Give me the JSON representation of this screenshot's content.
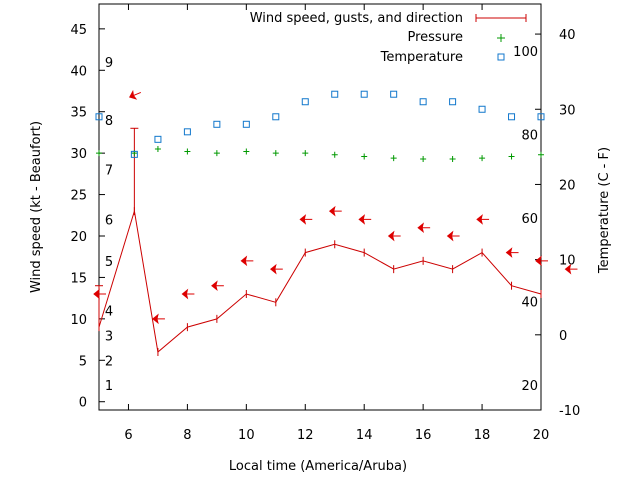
{
  "chart_data": {
    "type": "line",
    "xlabel": "Local time (America/Aruba)",
    "ylabel": "Wind speed (kt - Beaufort)",
    "y2label": "Temperature (C - F)",
    "xlim": [
      5,
      20
    ],
    "ylim": [
      -1,
      48
    ],
    "y2lim": [
      -10,
      44
    ],
    "grid": false,
    "legend_position": "top-right",
    "x_ticks": [
      6,
      8,
      10,
      12,
      14,
      16,
      18,
      20
    ],
    "y_ticks": [
      0,
      5,
      10,
      15,
      20,
      25,
      30,
      35,
      40,
      45
    ],
    "beaufort_ticks": [
      {
        "label": "1",
        "kt": 2
      },
      {
        "label": "2",
        "kt": 5
      },
      {
        "label": "3",
        "kt": 8
      },
      {
        "label": "4",
        "kt": 11
      },
      {
        "label": "5",
        "kt": 17
      },
      {
        "label": "6",
        "kt": 22
      },
      {
        "label": "7",
        "kt": 28
      },
      {
        "label": "8",
        "kt": 34
      },
      {
        "label": "9",
        "kt": 41
      }
    ],
    "y2_ticks": [
      -10,
      0,
      10,
      20,
      30,
      40
    ],
    "fahrenheit_ticks": [
      {
        "label": "20",
        "c": -6.67
      },
      {
        "label": "40",
        "c": 4.44
      },
      {
        "label": "60",
        "c": 15.56
      },
      {
        "label": "80",
        "c": 26.67
      },
      {
        "label": "100",
        "c": 37.78
      }
    ],
    "series": [
      {
        "name": "Wind speed, gusts, and direction",
        "color": "#cc0000",
        "x": [
          5,
          6.2,
          7,
          8,
          9,
          10,
          11,
          12,
          13,
          14,
          15,
          16,
          17,
          18,
          19,
          20
        ],
        "values": [
          9,
          23,
          6,
          9,
          10,
          13,
          12,
          18,
          19,
          18,
          16,
          17,
          16,
          18,
          14,
          13
        ],
        "gusts": [
          14,
          33,
          null,
          null,
          null,
          null,
          null,
          null,
          null,
          null,
          null,
          null,
          null,
          null,
          null,
          null
        ]
      },
      {
        "name": "Pressure",
        "color": "#009900",
        "x": [
          5,
          6.2,
          7,
          8,
          9,
          10,
          11,
          12,
          13,
          14,
          15,
          16,
          17,
          18,
          19,
          20
        ],
        "values": [
          30,
          30,
          30.5,
          30.2,
          30,
          30.2,
          30,
          30,
          29.8,
          29.6,
          29.4,
          29.3,
          29.3,
          29.4,
          29.6,
          29.8
        ]
      },
      {
        "name": "Temperature",
        "color": "#1177cc",
        "axis": "right",
        "x": [
          5,
          6.2,
          7,
          8,
          9,
          10,
          11,
          12,
          13,
          14,
          15,
          16,
          17,
          18,
          19,
          20
        ],
        "values": [
          29,
          24,
          26,
          27,
          28,
          28,
          29,
          31,
          32,
          32,
          32,
          31,
          31,
          30,
          29,
          29
        ]
      }
    ],
    "wind_directions": [
      {
        "x": 5,
        "y": 13,
        "dir": "E"
      },
      {
        "x": 6.2,
        "y": 37,
        "dir": "ENE"
      },
      {
        "x": 7,
        "y": 10,
        "dir": "E"
      },
      {
        "x": 8,
        "y": 13,
        "dir": "E"
      },
      {
        "x": 9,
        "y": 14,
        "dir": "E"
      },
      {
        "x": 10,
        "y": 17,
        "dir": "E"
      },
      {
        "x": 11,
        "y": 16,
        "dir": "E"
      },
      {
        "x": 12,
        "y": 22,
        "dir": "E"
      },
      {
        "x": 13,
        "y": 23,
        "dir": "E"
      },
      {
        "x": 14,
        "y": 22,
        "dir": "E"
      },
      {
        "x": 15,
        "y": 20,
        "dir": "E"
      },
      {
        "x": 16,
        "y": 21,
        "dir": "E"
      },
      {
        "x": 17,
        "y": 20,
        "dir": "E"
      },
      {
        "x": 18,
        "y": 22,
        "dir": "E"
      },
      {
        "x": 19,
        "y": 18,
        "dir": "E"
      },
      {
        "x": 20,
        "y": 17,
        "dir": "E"
      },
      {
        "x": 21,
        "y": 16,
        "dir": "E"
      }
    ]
  }
}
